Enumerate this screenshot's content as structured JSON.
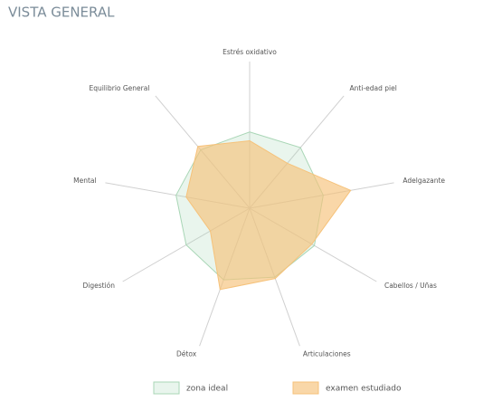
{
  "chart_data": {
    "type": "radar",
    "title": "VISTA GENERAL",
    "categories": [
      "Estrés oxidativo",
      "Anti-edad piel",
      "Adelgazante",
      "Cabellos / Uñas",
      "Articulaciones",
      "Détox",
      "Digestión",
      "Mental",
      "Equilibrio General"
    ],
    "rlim": [
      0,
      100
    ],
    "series": [
      {
        "name": "zona ideal",
        "color": "#a9d6b6",
        "values": [
          52,
          54,
          51,
          51,
          50,
          52,
          50,
          51,
          52
        ]
      },
      {
        "name": "examen estudiado",
        "color": "#f6c27a",
        "values": [
          46,
          40,
          70,
          49,
          51,
          59,
          31,
          44,
          55
        ]
      }
    ]
  }
}
